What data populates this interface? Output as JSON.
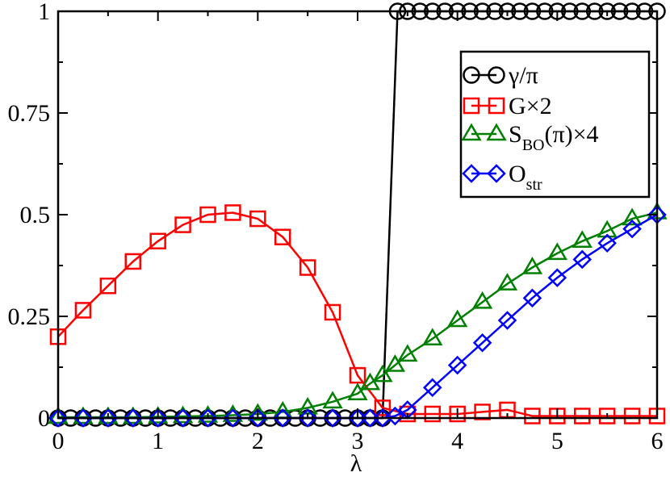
{
  "chart_data": {
    "type": "line",
    "title": "",
    "xlabel": "λ",
    "ylabel": "",
    "xlim": [
      0,
      6
    ],
    "ylim": [
      0,
      1
    ],
    "x_ticks": [
      "0",
      "1",
      "2",
      "3",
      "4",
      "5",
      "6"
    ],
    "y_ticks": [
      "0",
      "0.25",
      "0.5",
      "0.75",
      "1"
    ],
    "x_tick_values": [
      0,
      1,
      2,
      3,
      4,
      5,
      6
    ],
    "y_tick_values": [
      0,
      0.25,
      0.5,
      0.75,
      1
    ],
    "legend_position": "top-right",
    "series": [
      {
        "name": "γ/π",
        "legend_parts": [
          "γ/π"
        ],
        "marker": "circle",
        "color": "#000000",
        "x": [
          0,
          0.125,
          0.25,
          0.375,
          0.5,
          0.625,
          0.75,
          0.875,
          1.0,
          1.125,
          1.25,
          1.375,
          1.5,
          1.625,
          1.75,
          1.875,
          2.0,
          2.125,
          2.25,
          2.375,
          2.5,
          2.625,
          2.75,
          2.875,
          3.0,
          3.125,
          3.25,
          3.4,
          3.5,
          3.625,
          3.75,
          3.875,
          4.0,
          4.125,
          4.25,
          4.375,
          4.5,
          4.625,
          4.75,
          4.875,
          5.0,
          5.125,
          5.25,
          5.375,
          5.5,
          5.625,
          5.75,
          5.875,
          6.0
        ],
        "y": [
          0,
          0,
          0,
          0,
          0,
          0,
          0,
          0,
          0,
          0,
          0,
          0,
          0,
          0,
          0,
          0,
          0,
          0,
          0,
          0,
          0,
          0,
          0,
          0,
          0,
          0,
          0,
          1,
          1,
          1,
          1,
          1,
          1,
          1,
          1,
          1,
          1,
          1,
          1,
          1,
          1,
          1,
          1,
          1,
          1,
          1,
          1,
          1,
          1
        ]
      },
      {
        "name": "G×2",
        "legend_parts": [
          "G×2"
        ],
        "marker": "square",
        "color": "#ff0000",
        "x": [
          0,
          0.25,
          0.5,
          0.75,
          1.0,
          1.25,
          1.5,
          1.75,
          2.0,
          2.25,
          2.5,
          2.75,
          3.0,
          3.25,
          3.5,
          3.75,
          4.0,
          4.25,
          4.5,
          4.75,
          5.0,
          5.25,
          5.5,
          5.75,
          6.0
        ],
        "y": [
          0.2,
          0.265,
          0.325,
          0.385,
          0.435,
          0.475,
          0.5,
          0.505,
          0.49,
          0.445,
          0.37,
          0.26,
          0.105,
          0.025,
          0.01,
          0.01,
          0.01,
          0.015,
          0.02,
          0.005,
          0.005,
          0.005,
          0.005,
          0.005,
          0.005
        ]
      },
      {
        "name": "S_BO(π)×4",
        "legend_parts": [
          "S",
          "BO",
          "(π)×4"
        ],
        "marker": "triangle",
        "color": "#008000",
        "x": [
          0,
          0.25,
          0.5,
          0.75,
          1.0,
          1.25,
          1.5,
          1.75,
          2.0,
          2.25,
          2.5,
          2.75,
          3.0,
          3.125,
          3.25,
          3.375,
          3.5,
          3.75,
          4.0,
          4.25,
          4.5,
          4.75,
          5.0,
          5.25,
          5.5,
          5.75,
          6.0
        ],
        "y": [
          0.002,
          0.002,
          0.002,
          0.002,
          0.003,
          0.004,
          0.005,
          0.007,
          0.01,
          0.015,
          0.025,
          0.04,
          0.06,
          0.085,
          0.105,
          0.13,
          0.155,
          0.195,
          0.24,
          0.285,
          0.33,
          0.37,
          0.405,
          0.435,
          0.46,
          0.49,
          0.505
        ]
      },
      {
        "name": "O_str",
        "legend_parts": [
          "O",
          "str"
        ],
        "marker": "diamond",
        "color": "#0000ff",
        "x": [
          0,
          0.25,
          0.5,
          0.75,
          1.0,
          1.25,
          1.5,
          1.75,
          2.0,
          2.25,
          2.5,
          2.75,
          3.0,
          3.125,
          3.25,
          3.375,
          3.5,
          3.75,
          4.0,
          4.25,
          4.5,
          4.75,
          5.0,
          5.25,
          5.5,
          5.75,
          6.0
        ],
        "y": [
          0,
          0,
          0,
          0,
          0,
          0,
          0,
          0,
          0,
          0,
          0,
          0,
          0,
          0,
          0,
          0.005,
          0.02,
          0.075,
          0.13,
          0.185,
          0.24,
          0.295,
          0.345,
          0.39,
          0.43,
          0.465,
          0.5
        ]
      }
    ]
  }
}
